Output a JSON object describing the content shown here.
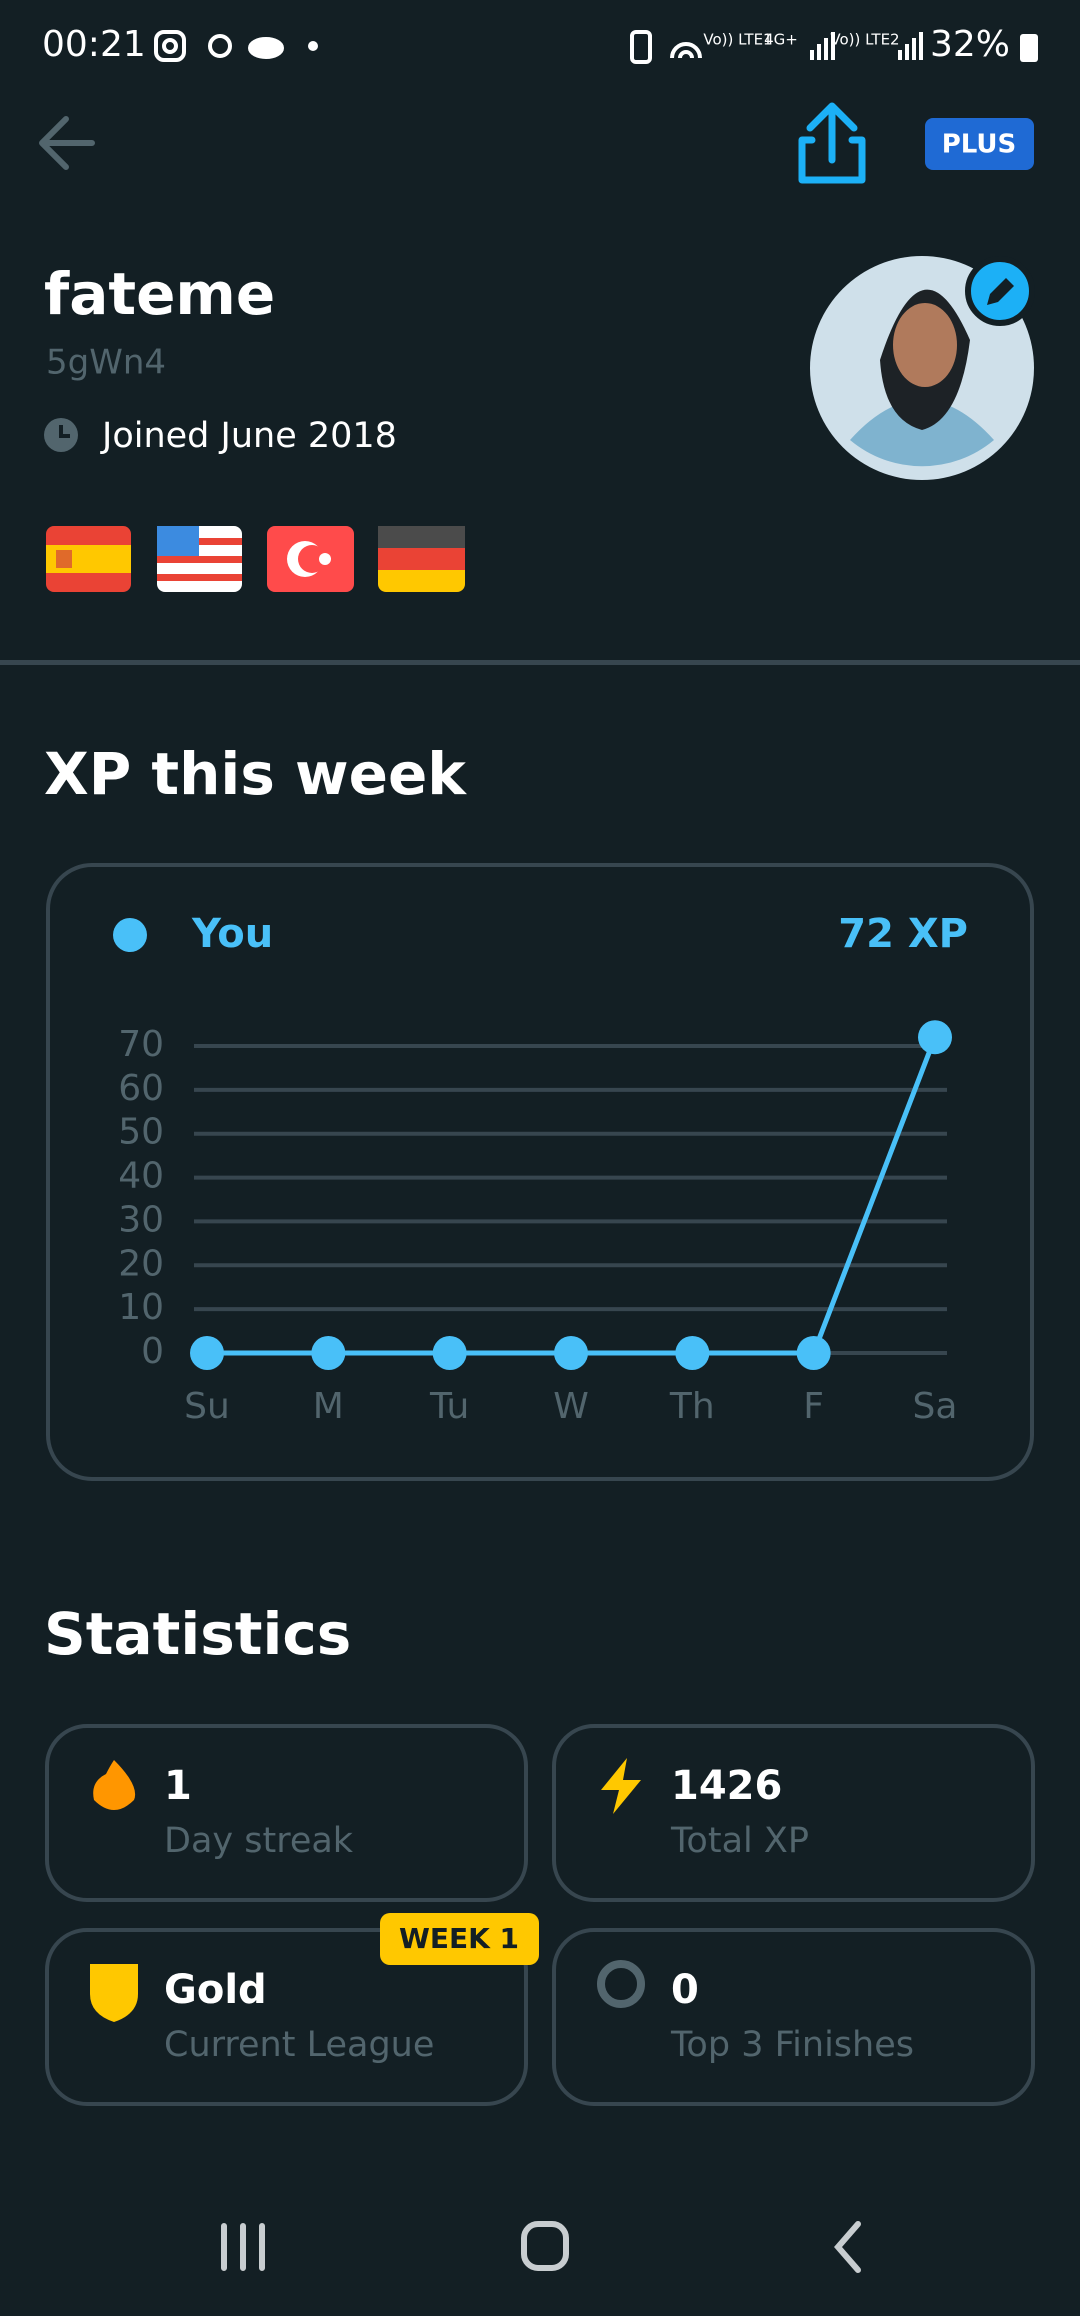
{
  "status_bar": {
    "time": "00:21",
    "network_1": "Vo)) LTE1",
    "network_type": "4G+",
    "network_2": "Vo)) LTE2",
    "battery": "32%"
  },
  "header": {
    "badge": "PLUS"
  },
  "profile": {
    "name": "fateme",
    "username": "5gWn4",
    "joined": "Joined June 2018"
  },
  "xp_section": {
    "title": "XP this week",
    "total": "72 XP"
  },
  "chart_data": {
    "type": "line",
    "categories": [
      "Su",
      "M",
      "Tu",
      "W",
      "Th",
      "F",
      "Sa"
    ],
    "series": [
      {
        "name": "You",
        "color": "#49c0f8",
        "values": [
          0,
          0,
          0,
          0,
          0,
          0,
          72
        ]
      }
    ],
    "ylim": [
      0,
      70
    ],
    "yticks": [
      0,
      10,
      20,
      30,
      40,
      50,
      60,
      70
    ],
    "grid": true
  },
  "statistics": {
    "title": "Statistics",
    "items": [
      {
        "value": "1",
        "label": "Day streak"
      },
      {
        "value": "1426",
        "label": "Total XP"
      },
      {
        "value": "Gold",
        "label": "Current League",
        "badge": "WEEK 1"
      },
      {
        "value": "0",
        "label": "Top 3 Finishes"
      }
    ]
  }
}
